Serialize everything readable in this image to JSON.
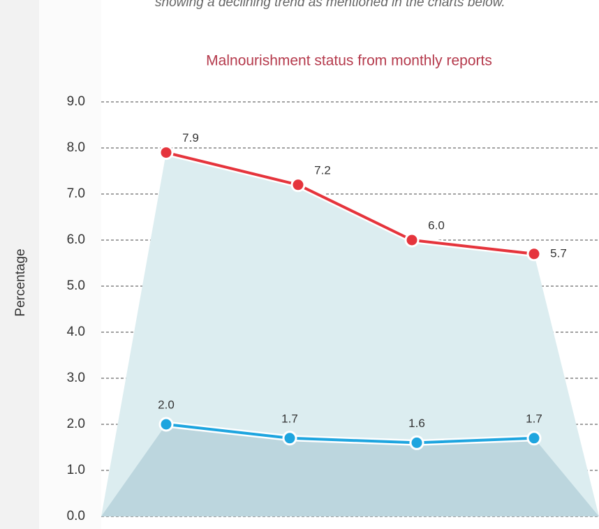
{
  "intro_text": "showing a declining trend as mentioned in the charts below.",
  "chart_data": {
    "type": "line",
    "title": "Malnourishment status from monthly reports",
    "y_label": "Percentage",
    "categories": [
      null,
      null,
      null,
      null
    ],
    "series": [
      {
        "color": "#e5343c",
        "values": [
          7.9,
          7.2,
          6.0,
          5.7
        ],
        "value_labels": [
          "7.9",
          "7.2",
          "6.0",
          "5.7"
        ]
      },
      {
        "color": "#1ea5df",
        "values": [
          2.0,
          1.7,
          1.6,
          1.7
        ],
        "value_labels": [
          "2.0",
          "1.7",
          "1.6",
          "1.7"
        ]
      }
    ],
    "ylim": [
      0,
      9
    ],
    "yticks": [
      {
        "value": 0,
        "label": "0.0"
      },
      {
        "value": 1,
        "label": "1.0"
      },
      {
        "value": 2,
        "label": "2.0"
      },
      {
        "value": 3,
        "label": "3.0"
      },
      {
        "value": 4,
        "label": "4.0"
      },
      {
        "value": 5,
        "label": "5.0"
      },
      {
        "value": 6,
        "label": "6.0"
      },
      {
        "value": 7,
        "label": "7.0"
      },
      {
        "value": 8,
        "label": "8.0"
      },
      {
        "value": 9,
        "label": "9.0"
      }
    ],
    "grid": true
  }
}
